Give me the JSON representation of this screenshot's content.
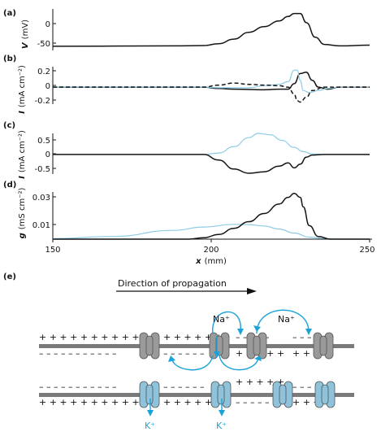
{
  "colors": {
    "dark": "#151515",
    "light": "#8ecbe6",
    "blue": "#1aa3d9",
    "channel_grey": "#9a9a9a",
    "channel_blue": "#8fc3dc",
    "membrane": "#7a7a7a"
  },
  "panels": [
    {
      "id": "a",
      "label": "(a)",
      "ylabel_var": "V",
      "ylabel_unit": "(mV)",
      "yticks": [
        "0",
        "-50"
      ]
    },
    {
      "id": "b",
      "label": "(b)",
      "ylabel_var": "I",
      "ylabel_unit": "(mA cm⁻²)",
      "yticks": [
        "0.2",
        "0",
        "-0.2"
      ]
    },
    {
      "id": "c",
      "label": "(c)",
      "ylabel_var": "I",
      "ylabel_unit": "(mA cm⁻²)",
      "yticks": [
        "0.5",
        "0",
        "-0.5"
      ]
    },
    {
      "id": "d",
      "label": "(d)",
      "ylabel_var": "g",
      "ylabel_unit": "(mS cm⁻²)",
      "yticks": [
        "0.03",
        "0.01"
      ]
    }
  ],
  "xaxis": {
    "var": "x",
    "unit": "(mm)",
    "ticks": [
      "150",
      "200",
      "250"
    ]
  },
  "chart_data": [
    {
      "type": "line",
      "panel": "a",
      "xlim": [
        150,
        255
      ],
      "ylim": [
        -80,
        30
      ],
      "series": [
        {
          "color": "dark",
          "x": [
            150,
            190,
            200,
            205,
            210,
            215,
            220,
            225,
            228,
            230,
            232,
            234,
            237,
            240,
            245,
            255
          ],
          "y": [
            -69,
            -68,
            -67,
            -62,
            -50,
            -32,
            -17,
            -2,
            10,
            18,
            18,
            -6,
            -45,
            -64,
            -68,
            -66
          ]
        }
      ]
    },
    {
      "type": "line",
      "panel": "b",
      "xlim": [
        150,
        255
      ],
      "ylim": [
        -0.25,
        0.3
      ],
      "series": [
        {
          "color": "dark",
          "x": [
            150,
            200,
            205,
            210,
            215,
            220,
            225,
            228,
            230,
            232,
            234,
            236,
            238,
            241,
            245,
            255
          ],
          "y": [
            0,
            0,
            -0.02,
            -0.03,
            -0.035,
            -0.04,
            -0.03,
            -0.03,
            0.05,
            0.2,
            0.22,
            0.1,
            0,
            -0.03,
            0,
            0
          ]
        },
        {
          "color": "light",
          "x": [
            150,
            200,
            205,
            210,
            215,
            220,
            225,
            228,
            230,
            231,
            232,
            233,
            235,
            238,
            241,
            245,
            255
          ],
          "y": [
            0,
            0,
            -0.01,
            -0.01,
            -0.01,
            0.02,
            0.04,
            0.08,
            0.25,
            0.25,
            0.1,
            -0.05,
            -0.08,
            -0.05,
            -0.02,
            0,
            0
          ]
        },
        {
          "color": "dark",
          "dashed": true,
          "x": [
            150,
            200,
            205,
            210,
            215,
            220,
            225,
            228,
            230,
            231,
            232,
            234,
            236,
            240,
            245,
            255
          ],
          "y": [
            0,
            0,
            0.03,
            0.06,
            0.04,
            0.03,
            0.02,
            0,
            -0.1,
            -0.2,
            -0.22,
            -0.15,
            -0.05,
            0,
            0,
            0
          ]
        }
      ]
    },
    {
      "type": "line",
      "panel": "c",
      "xlim": [
        150,
        255
      ],
      "ylim": [
        -0.7,
        0.75
      ],
      "series": [
        {
          "color": "light",
          "x": [
            150,
            200,
            205,
            210,
            215,
            218,
            222,
            226,
            230,
            233,
            236,
            240,
            245,
            255
          ],
          "y": [
            0,
            0,
            0.05,
            0.28,
            0.6,
            0.75,
            0.7,
            0.5,
            0.25,
            0.1,
            0.02,
            0,
            0,
            0
          ]
        },
        {
          "color": "dark",
          "x": [
            150,
            200,
            205,
            210,
            215,
            220,
            225,
            228,
            230,
            232,
            234,
            236,
            240,
            245,
            255
          ],
          "y": [
            0,
            0,
            -0.2,
            -0.52,
            -0.67,
            -0.62,
            -0.42,
            -0.3,
            -0.48,
            -0.35,
            -0.1,
            -0.02,
            0,
            0,
            0
          ]
        }
      ]
    },
    {
      "type": "line",
      "panel": "d",
      "xlim": [
        150,
        255
      ],
      "ylim": [
        0,
        0.035
      ],
      "series": [
        {
          "color": "light",
          "x": [
            150,
            170,
            190,
            200,
            210,
            215,
            220,
            225,
            230,
            235,
            240,
            245,
            255
          ],
          "y": [
            0.0004,
            0.002,
            0.0065,
            0.009,
            0.011,
            0.0108,
            0.0098,
            0.0075,
            0.0045,
            0.0015,
            0.0004,
            0.0001,
            0
          ]
        },
        {
          "color": "dark",
          "x": [
            150,
            195,
            200,
            205,
            210,
            215,
            220,
            225,
            228,
            230,
            232,
            233,
            235,
            238,
            242,
            250,
            255
          ],
          "y": [
            0,
            0,
            0.001,
            0.0035,
            0.008,
            0.013,
            0.019,
            0.026,
            0.031,
            0.034,
            0.031,
            0.024,
            0.01,
            0.002,
            0,
            0,
            0
          ]
        }
      ]
    }
  ],
  "diagram": {
    "panel_label": "(e)",
    "arrow_label": "Direction of propagation",
    "ion_na": "Na⁺",
    "ion_k": "K⁺",
    "top_upper_runs": [
      "+ + + + + + + + + + +",
      "+ + + + + +",
      "– – – – –",
      "– – – –"
    ],
    "top_lower_runs": [
      "– – – – – – – – – – –",
      "– – – – – –",
      "+ + + + +",
      "+ + + +"
    ],
    "bottom_upper_runs": [
      "– – – – – – – – – – –",
      "– – – – – –",
      "+ + + + +",
      "– – – –"
    ],
    "bottom_lower_runs": [
      "+ + + + + + + + + + +",
      "+ + + + + +",
      "– – – – –",
      "+ + + +"
    ]
  }
}
